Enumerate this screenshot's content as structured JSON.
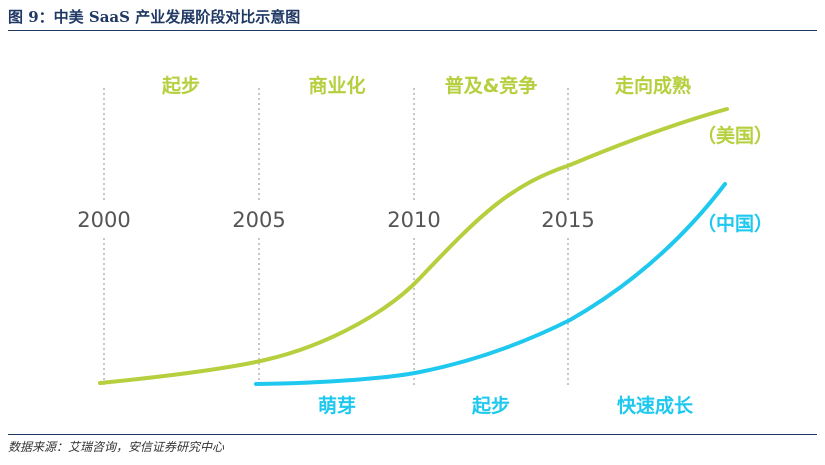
{
  "figure": {
    "title": "图 9：中美 SaaS 产业发展阶段对比示意图",
    "source": "数据来源：艾瑞咨询，安信证券研究中心"
  },
  "timeline": {
    "years": [
      "2000",
      "2005",
      "2010",
      "2015"
    ]
  },
  "usa": {
    "label": "（美国）",
    "color": "#b5cf3e",
    "stages": [
      "起步",
      "商业化",
      "普及&竞争",
      "走向成熟"
    ]
  },
  "china": {
    "label": "（中国）",
    "color": "#1ec8ee",
    "stages": [
      "萌芽",
      "起步",
      "快速成长"
    ]
  },
  "colors": {
    "guide_line": "#c8c8c8",
    "year_text": "#555555",
    "title": "#1f3864"
  }
}
